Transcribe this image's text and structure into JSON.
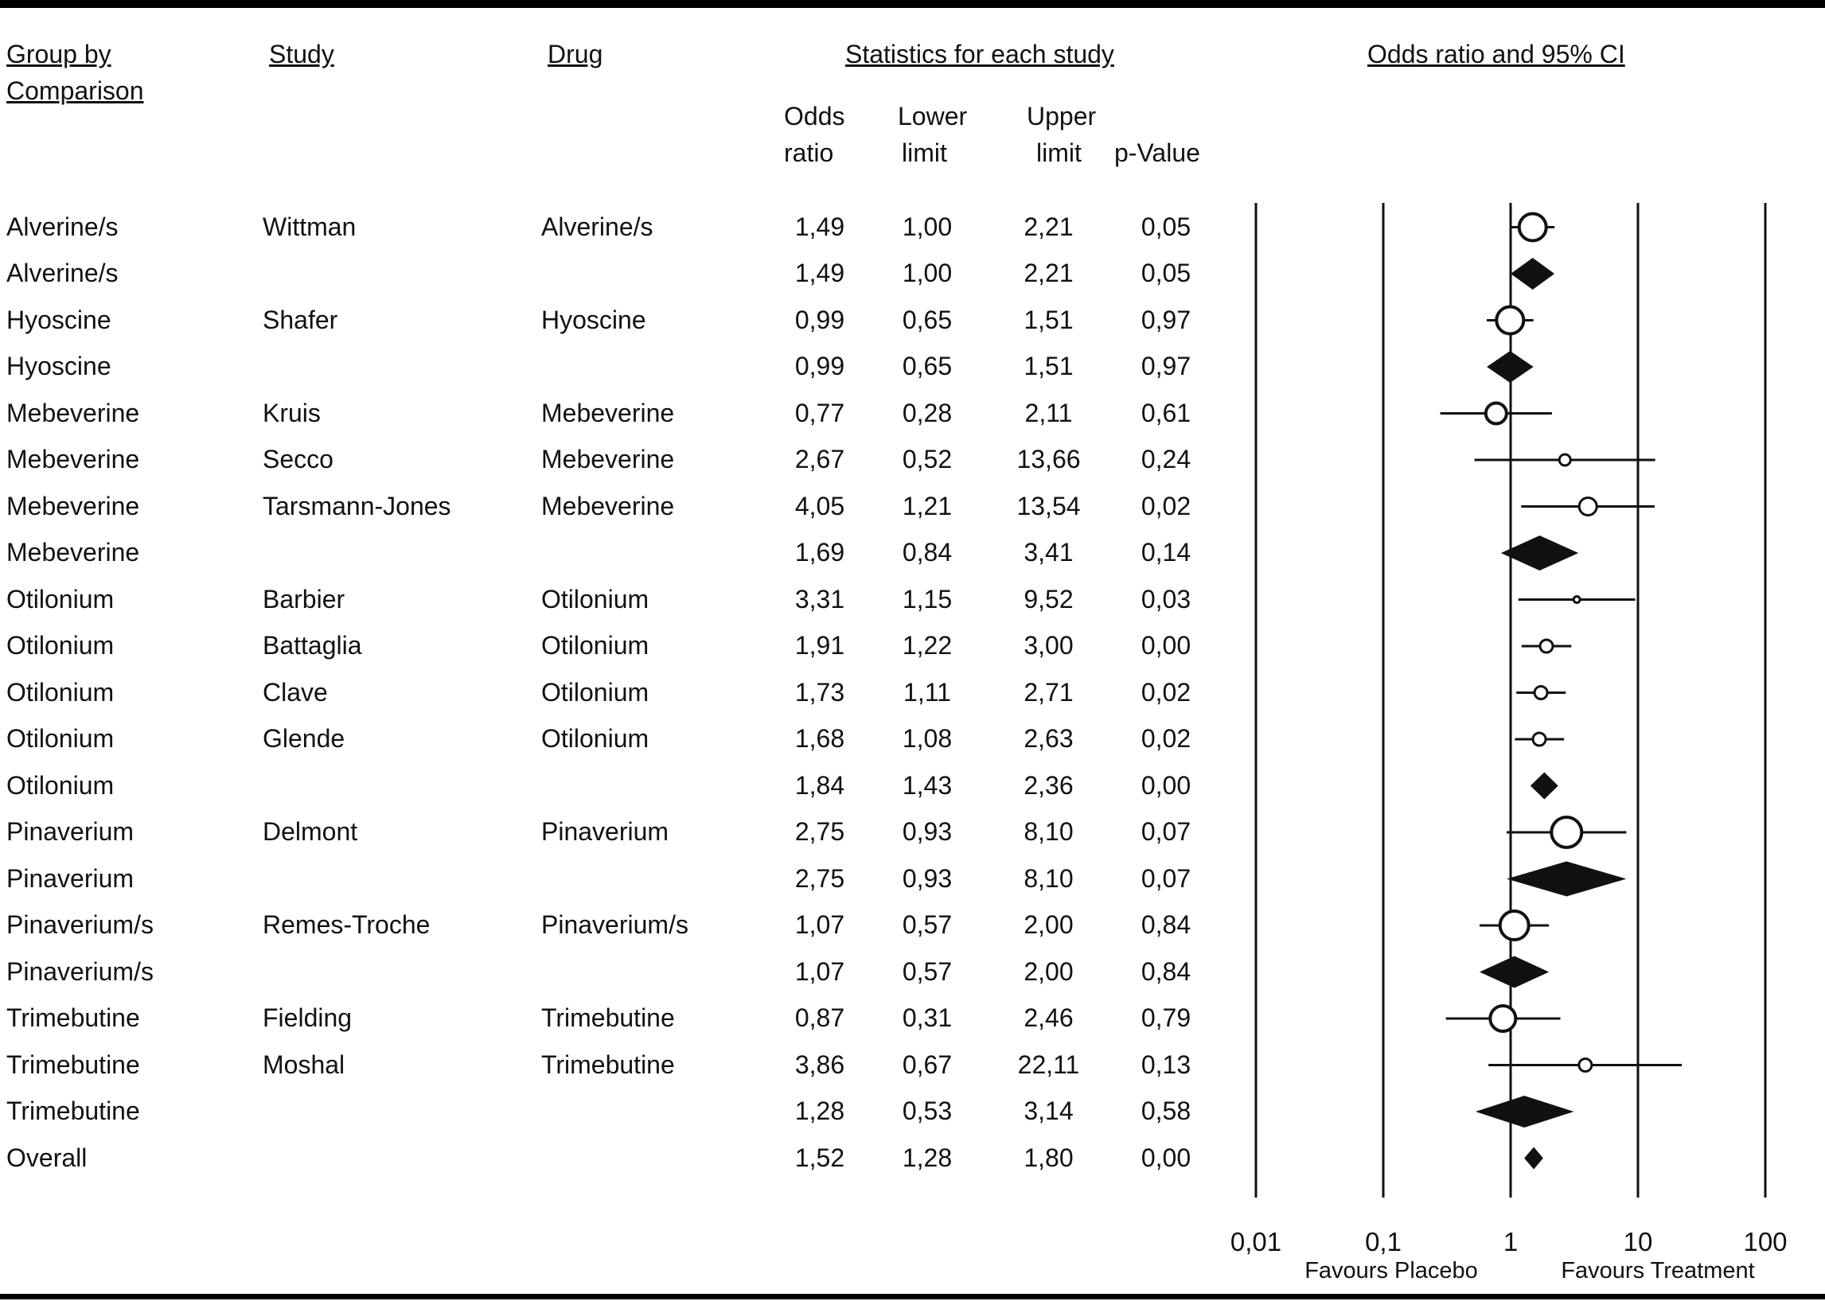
{
  "header": {
    "group_line1": "Group by",
    "group_line2": "Comparison",
    "study": "Study",
    "drug": "Drug",
    "stats": "Statistics for each study",
    "plot": "Odds ratio and 95% CI",
    "odds_line1": "Odds",
    "odds_line2": "ratio",
    "lower_line1": "Lower",
    "lower_line2": "limit",
    "upper_line1": "Upper",
    "upper_line2": "limit",
    "p_value": "p-Value"
  },
  "colors": {
    "ink": "#111111",
    "marker_fill": "#ffffff",
    "summary_fill": "#111111"
  },
  "chart_data": {
    "type": "forest",
    "x_scale": "log",
    "x_range": [
      0.01,
      100
    ],
    "reference_value": 1,
    "x_ticks": [
      {
        "label": "0,01",
        "value": 0.01
      },
      {
        "label": "0,1",
        "value": 0.1
      },
      {
        "label": "1",
        "value": 1
      },
      {
        "label": "10",
        "value": 10
      },
      {
        "label": "100",
        "value": 100
      }
    ],
    "footer_left": "Favours Placebo",
    "footer_right": "Favours Treatment",
    "rows": [
      {
        "group": "Alverine/s",
        "study": "Wittman",
        "drug": "Alverine/s",
        "or": 1.49,
        "lower": 1.0,
        "upper": 2.21,
        "p": 0.05,
        "or_text": "1,49",
        "lower_text": "1,00",
        "upper_text": "2,21",
        "p_text": "0,05",
        "kind": "study",
        "size": 17
      },
      {
        "group": "Alverine/s",
        "study": "",
        "drug": "",
        "or": 1.49,
        "lower": 1.0,
        "upper": 2.21,
        "p": 0.05,
        "or_text": "1,49",
        "lower_text": "1,00",
        "upper_text": "2,21",
        "p_text": "0,05",
        "kind": "summary",
        "size": 20
      },
      {
        "group": "Hyoscine",
        "study": "Shafer",
        "drug": "Hyoscine",
        "or": 0.99,
        "lower": 0.65,
        "upper": 1.51,
        "p": 0.97,
        "or_text": "0,99",
        "lower_text": "0,65",
        "upper_text": "1,51",
        "p_text": "0,97",
        "kind": "study",
        "size": 17
      },
      {
        "group": "Hyoscine",
        "study": "",
        "drug": "",
        "or": 0.99,
        "lower": 0.65,
        "upper": 1.51,
        "p": 0.97,
        "or_text": "0,99",
        "lower_text": "0,65",
        "upper_text": "1,51",
        "p_text": "0,97",
        "kind": "summary",
        "size": 20
      },
      {
        "group": "Mebeverine",
        "study": "Kruis",
        "drug": "Mebeverine",
        "or": 0.77,
        "lower": 0.28,
        "upper": 2.11,
        "p": 0.61,
        "or_text": "0,77",
        "lower_text": "0,28",
        "upper_text": "2,11",
        "p_text": "0,61",
        "kind": "study",
        "size": 13
      },
      {
        "group": "Mebeverine",
        "study": "Secco",
        "drug": "Mebeverine",
        "or": 2.67,
        "lower": 0.52,
        "upper": 13.66,
        "p": 0.24,
        "or_text": "2,67",
        "lower_text": "0,52",
        "upper_text": "13,66",
        "p_text": "0,24",
        "kind": "study",
        "size": 7
      },
      {
        "group": "Mebeverine",
        "study": "Tarsmann-Jones",
        "drug": "Mebeverine",
        "or": 4.05,
        "lower": 1.21,
        "upper": 13.54,
        "p": 0.02,
        "or_text": "4,05",
        "lower_text": "1,21",
        "upper_text": "13,54",
        "p_text": "0,02",
        "kind": "study",
        "size": 11
      },
      {
        "group": "Mebeverine",
        "study": "",
        "drug": "",
        "or": 1.69,
        "lower": 0.84,
        "upper": 3.41,
        "p": 0.14,
        "or_text": "1,69",
        "lower_text": "0,84",
        "upper_text": "3,41",
        "p_text": "0,14",
        "kind": "summary",
        "size": 22
      },
      {
        "group": "Otilonium",
        "study": "Barbier",
        "drug": "Otilonium",
        "or": 3.31,
        "lower": 1.15,
        "upper": 9.52,
        "p": 0.03,
        "or_text": "3,31",
        "lower_text": "1,15",
        "upper_text": "9,52",
        "p_text": "0,03",
        "kind": "study",
        "size": 4
      },
      {
        "group": "Otilonium",
        "study": "Battaglia",
        "drug": "Otilonium",
        "or": 1.91,
        "lower": 1.22,
        "upper": 3.0,
        "p": 0.0,
        "or_text": "1,91",
        "lower_text": "1,22",
        "upper_text": "3,00",
        "p_text": "0,00",
        "kind": "study",
        "size": 8
      },
      {
        "group": "Otilonium",
        "study": "Clave",
        "drug": "Otilonium",
        "or": 1.73,
        "lower": 1.11,
        "upper": 2.71,
        "p": 0.02,
        "or_text": "1,73",
        "lower_text": "1,11",
        "upper_text": "2,71",
        "p_text": "0,02",
        "kind": "study",
        "size": 8
      },
      {
        "group": "Otilonium",
        "study": "Glende",
        "drug": "Otilonium",
        "or": 1.68,
        "lower": 1.08,
        "upper": 2.63,
        "p": 0.02,
        "or_text": "1,68",
        "lower_text": "1,08",
        "upper_text": "2,63",
        "p_text": "0,02",
        "kind": "study",
        "size": 8
      },
      {
        "group": "Otilonium",
        "study": "",
        "drug": "",
        "or": 1.84,
        "lower": 1.43,
        "upper": 2.36,
        "p": 0.0,
        "or_text": "1,84",
        "lower_text": "1,43",
        "upper_text": "2,36",
        "p_text": "0,00",
        "kind": "summary",
        "size": 17
      },
      {
        "group": "Pinaverium",
        "study": "Delmont",
        "drug": "Pinaverium",
        "or": 2.75,
        "lower": 0.93,
        "upper": 8.1,
        "p": 0.07,
        "or_text": "2,75",
        "lower_text": "0,93",
        "upper_text": "8,10",
        "p_text": "0,07",
        "kind": "study",
        "size": 19
      },
      {
        "group": "Pinaverium",
        "study": "",
        "drug": "",
        "or": 2.75,
        "lower": 0.93,
        "upper": 8.1,
        "p": 0.07,
        "or_text": "2,75",
        "lower_text": "0,93",
        "upper_text": "8,10",
        "p_text": "0,07",
        "kind": "summary",
        "size": 22
      },
      {
        "group": "Pinaverium/s",
        "study": "Remes-Troche",
        "drug": "Pinaverium/s",
        "or": 1.07,
        "lower": 0.57,
        "upper": 2.0,
        "p": 0.84,
        "or_text": "1,07",
        "lower_text": "0,57",
        "upper_text": "2,00",
        "p_text": "0,84",
        "kind": "study",
        "size": 18
      },
      {
        "group": "Pinaverium/s",
        "study": "",
        "drug": "",
        "or": 1.07,
        "lower": 0.57,
        "upper": 2.0,
        "p": 0.84,
        "or_text": "1,07",
        "lower_text": "0,57",
        "upper_text": "2,00",
        "p_text": "0,84",
        "kind": "summary",
        "size": 20
      },
      {
        "group": "Trimebutine",
        "study": "Fielding",
        "drug": "Trimebutine",
        "or": 0.87,
        "lower": 0.31,
        "upper": 2.46,
        "p": 0.79,
        "or_text": "0,87",
        "lower_text": "0,31",
        "upper_text": "2,46",
        "p_text": "0,79",
        "kind": "study",
        "size": 16
      },
      {
        "group": "Trimebutine",
        "study": "Moshal",
        "drug": "Trimebutine",
        "or": 3.86,
        "lower": 0.67,
        "upper": 22.11,
        "p": 0.13,
        "or_text": "3,86",
        "lower_text": "0,67",
        "upper_text": "22,11",
        "p_text": "0,13",
        "kind": "study",
        "size": 8
      },
      {
        "group": "Trimebutine",
        "study": "",
        "drug": "",
        "or": 1.28,
        "lower": 0.53,
        "upper": 3.14,
        "p": 0.58,
        "or_text": "1,28",
        "lower_text": "0,53",
        "upper_text": "3,14",
        "p_text": "0,58",
        "kind": "summary",
        "size": 20
      },
      {
        "group": "Overall",
        "study": "",
        "drug": "",
        "or": 1.52,
        "lower": 1.28,
        "upper": 1.8,
        "p": 0.0,
        "or_text": "1,52",
        "lower_text": "1,28",
        "upper_text": "1,80",
        "p_text": "0,00",
        "kind": "summary",
        "size": 14
      }
    ]
  }
}
